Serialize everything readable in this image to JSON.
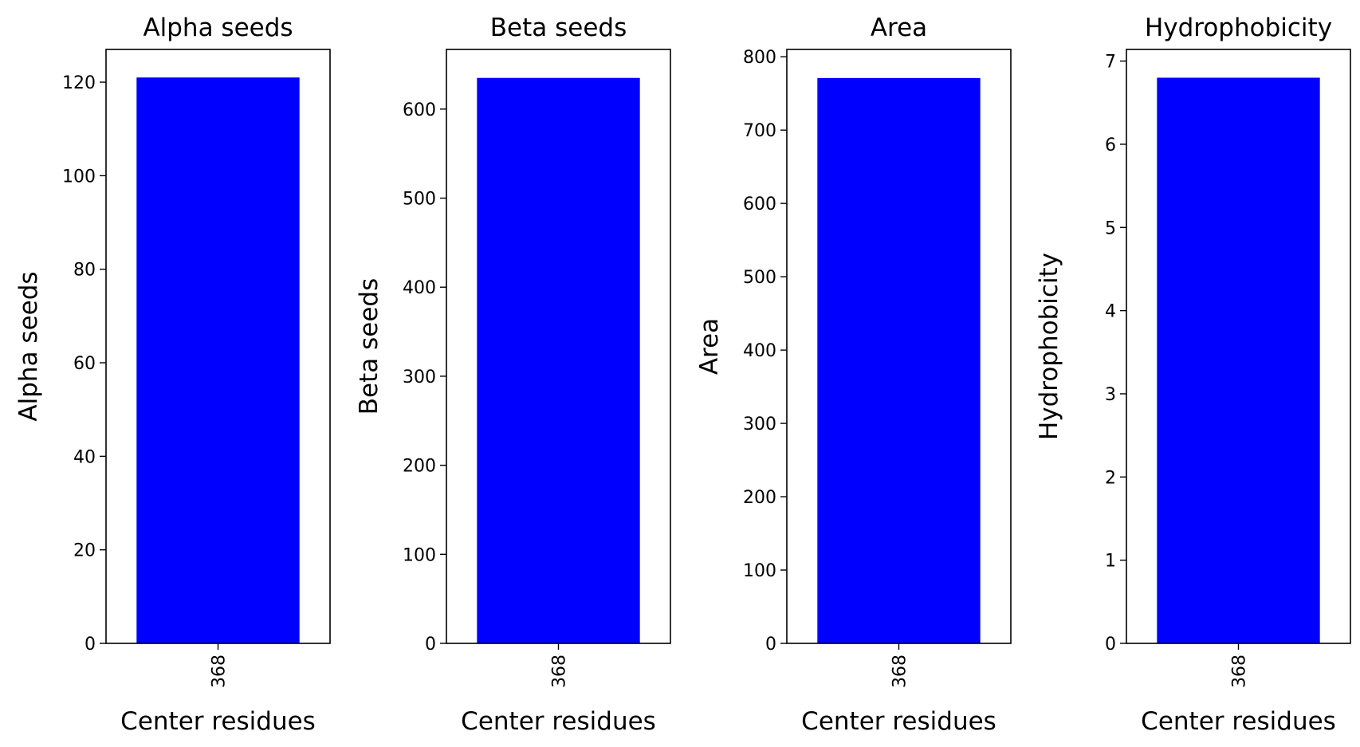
{
  "chart_data": [
    {
      "type": "bar",
      "title": "Alpha seeds",
      "xlabel": "Center residues",
      "ylabel": "Alpha seeds",
      "categories": [
        "368"
      ],
      "values": [
        121
      ],
      "ylim": [
        0,
        127
      ],
      "yticks": [
        0,
        20,
        40,
        60,
        80,
        100,
        120
      ],
      "bar_color": "#0000ff",
      "grid": false
    },
    {
      "type": "bar",
      "title": "Beta seeds",
      "xlabel": "Center residues",
      "ylabel": "Beta seeds",
      "categories": [
        "368"
      ],
      "values": [
        635
      ],
      "ylim": [
        0,
        667
      ],
      "yticks": [
        0,
        100,
        200,
        300,
        400,
        500,
        600
      ],
      "bar_color": "#0000ff",
      "grid": false
    },
    {
      "type": "bar",
      "title": "Area",
      "xlabel": "Center residues",
      "ylabel": "Area",
      "categories": [
        "368"
      ],
      "values": [
        771
      ],
      "ylim": [
        0,
        810
      ],
      "yticks": [
        0,
        100,
        200,
        300,
        400,
        500,
        600,
        700,
        800
      ],
      "bar_color": "#0000ff",
      "grid": false
    },
    {
      "type": "bar",
      "title": "Hydrophobicity",
      "xlabel": "Center residues",
      "ylabel": "Hydrophobicity",
      "categories": [
        "368"
      ],
      "values": [
        6.8
      ],
      "ylim": [
        0,
        7.14
      ],
      "yticks": [
        0,
        1,
        2,
        3,
        4,
        5,
        6,
        7
      ],
      "bar_color": "#0000ff",
      "grid": false
    }
  ]
}
